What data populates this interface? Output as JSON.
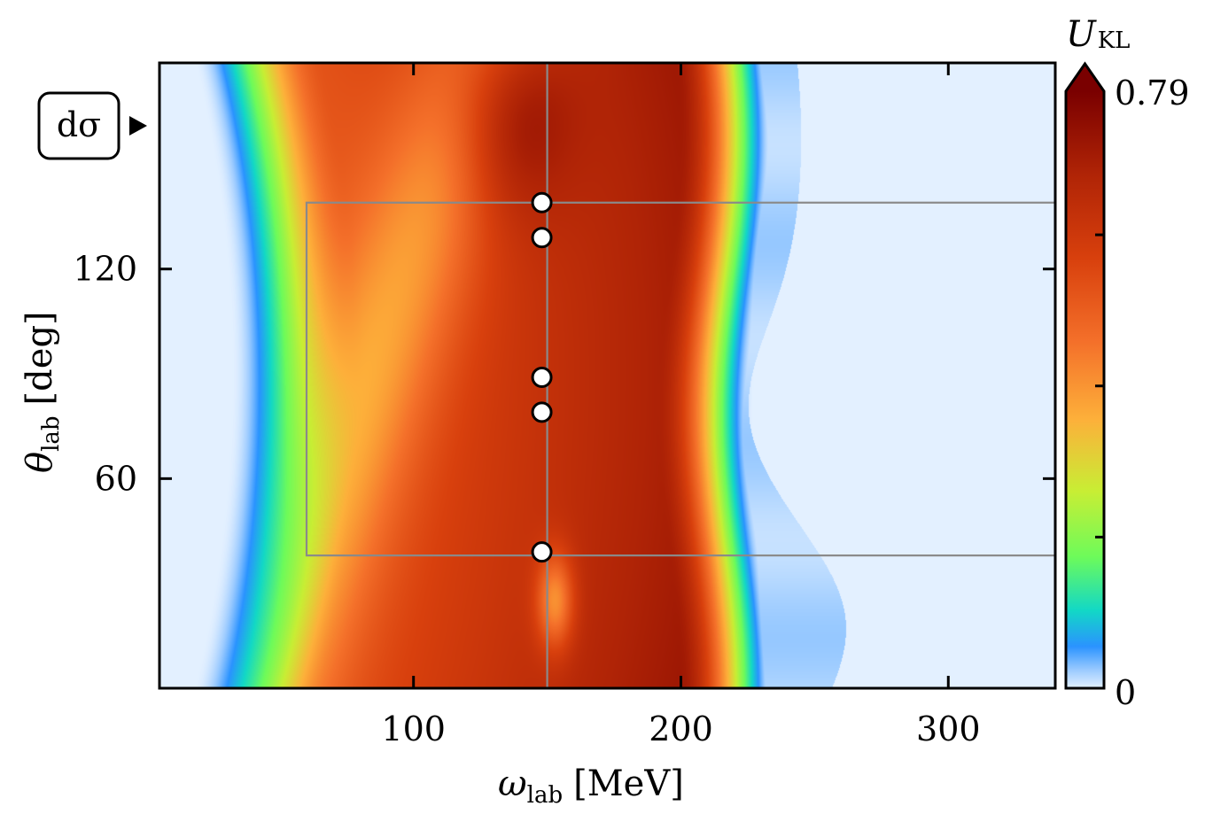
{
  "chart_data": {
    "type": "heatmap",
    "xlabel": "ω",
    "xlabel_sub": "lab",
    "xlabel_unit": "[MeV]",
    "ylabel": "θ",
    "ylabel_sub": "lab",
    "ylabel_unit": "[deg]",
    "xlim": [
      5,
      340
    ],
    "ylim": [
      0,
      179
    ],
    "xticks": [
      100,
      200,
      300
    ],
    "xtick_labels": [
      "100",
      "200",
      "300"
    ],
    "yticks": [
      60,
      120
    ],
    "ytick_labels": [
      "60",
      "120"
    ],
    "colorbar": {
      "label": "U",
      "label_sub": "KL",
      "min": 0,
      "max": 0.79,
      "min_label": "0",
      "max_label": "0.79",
      "extend": "max",
      "colormap": "turbo"
    },
    "annotation": {
      "text": "dσ",
      "marker": "arrow-right",
      "y": 160
    },
    "region": {
      "x": [
        60,
        340
      ],
      "y": [
        38,
        139
      ]
    },
    "crosshair": {
      "x": 150
    },
    "points": [
      {
        "x": 148,
        "y": 139
      },
      {
        "x": 148,
        "y": 129
      },
      {
        "x": 148,
        "y": 89
      },
      {
        "x": 148,
        "y": 79
      },
      {
        "x": 148,
        "y": 39
      }
    ]
  }
}
